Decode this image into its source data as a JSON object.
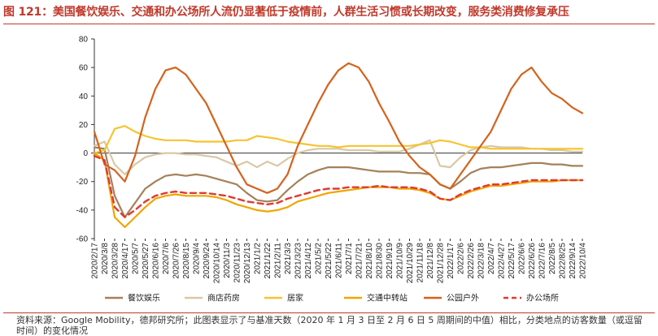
{
  "title": "图 121：美国餐饮娱乐、交通和办公场所人流仍显著低于疫情前，人群生活习惯或长期改变，服务类消费修复承压",
  "footnote": "资料来源：Google Mobility，德邦研究所；此图表显示了与基准天数（2020 年 1 月 3 日至 2 月 6 日 5 周期间的中值）相比，分类地点的访客数量（或逗留时间）的变化情况",
  "colors": {
    "restaurants": "#a5805a",
    "pharmacy": "#d9c8a5",
    "residential": "#f5c431",
    "transit": "#f0a500",
    "parks": "#d4621c",
    "workplaces": "#e03a2f",
    "title": "#c0392b"
  },
  "chart_data": {
    "type": "line",
    "ylim": [
      -60,
      80
    ],
    "yticks": [
      -60,
      -40,
      -20,
      0,
      20,
      40,
      60,
      80
    ],
    "x": [
      "2020/2/17",
      "2020/3/8",
      "2020/3/28",
      "2020/4/17",
      "2020/5/7",
      "2020/5/27",
      "2020/6/16",
      "2020/7/6",
      "2020/7/26",
      "2020/8/15",
      "2020/9/4",
      "2020/9/24",
      "2020/10/14",
      "2020/11/3",
      "2020/11/23",
      "2020/12/13",
      "2021/1/2",
      "2021/1/22",
      "2021/2/11",
      "2021/3/3",
      "2021/3/23",
      "2021/4/12",
      "2021/5/2",
      "2021/5/22",
      "2021/6/11",
      "2021/7/1",
      "2021/7/21",
      "2021/8/10",
      "2021/8/30",
      "2021/9/19",
      "2021/10/9",
      "2021/10/29",
      "2021/11/18",
      "2021/12/8",
      "2021/12/28",
      "2022/1/17",
      "2022/2/6",
      "2022/2/26",
      "2022/3/18",
      "2022/4/7",
      "2022/4/27",
      "2022/5/17",
      "2022/6/6",
      "2022/6/26",
      "2022/7/16",
      "2022/8/5",
      "2022/8/25",
      "2022/9/14",
      "2022/10/4"
    ],
    "xticks": [
      "2020/2/17",
      "2020/3/8",
      "2020/3/28",
      "2020/4/17",
      "2020/5/7",
      "2020/5/27",
      "2020/6/16",
      "2020/7/6",
      "2020/7/26",
      "2020/8/15",
      "2020/9/4",
      "2020/9/24",
      "2020/10/14",
      "2020/11/3",
      "2020/11/23",
      "2020/12/13",
      "2021/1/2",
      "2021/1/22",
      "2021/2/11",
      "2021/3/3",
      "2021/3/23",
      "2021/4/12",
      "2021/5/2",
      "2021/5/22",
      "2021/6/11",
      "2021/7/1",
      "2021/7/21",
      "2021/8/10",
      "2021/8/30",
      "2021/9/19",
      "2021/10/9",
      "2021/10/29",
      "2021/11/18",
      "2021/12/8",
      "2021/12/28",
      "2022/1/17",
      "2022/2/6",
      "2022/2/26",
      "2022/3/18",
      "2022/4/7",
      "2022/4/27",
      "2022/5/17",
      "2022/6/6",
      "2022/6/26",
      "2022/7/16",
      "2022/8/5",
      "2022/8/25",
      "2022/9/14",
      "2022/10/4"
    ],
    "grid": false,
    "legend_position": "bottom",
    "series": [
      {
        "name": "餐饮娱乐",
        "key": "restaurants",
        "dash": false,
        "values": [
          4,
          3,
          -30,
          -45,
          -35,
          -25,
          -20,
          -16,
          -15,
          -16,
          -15,
          -16,
          -18,
          -20,
          -22,
          -28,
          -33,
          -34,
          -33,
          -26,
          -20,
          -15,
          -12,
          -10,
          -10,
          -10,
          -11,
          -12,
          -13,
          -13,
          -13,
          -14,
          -14,
          -15,
          -22,
          -25,
          -20,
          -14,
          -11,
          -10,
          -10,
          -9,
          -8,
          -7,
          -7,
          -8,
          -8,
          -9,
          -9
        ]
      },
      {
        "name": "商店药房",
        "key": "pharmacy",
        "dash": false,
        "values": [
          5,
          8,
          -8,
          -15,
          -8,
          -3,
          -1,
          0,
          0,
          -1,
          -1,
          -2,
          -3,
          -6,
          -9,
          -6,
          -10,
          -6,
          -9,
          -4,
          0,
          2,
          3,
          3,
          3,
          2,
          2,
          2,
          1,
          1,
          1,
          3,
          6,
          9,
          -9,
          -10,
          -3,
          2,
          4,
          5,
          4,
          4,
          4,
          3,
          3,
          2,
          2,
          1,
          1
        ]
      },
      {
        "name": "居家",
        "key": "residential",
        "dash": false,
        "values": [
          0,
          2,
          17,
          19,
          15,
          12,
          10,
          9,
          9,
          9,
          8,
          8,
          8,
          8,
          9,
          9,
          12,
          11,
          10,
          8,
          7,
          6,
          5,
          5,
          4,
          5,
          5,
          5,
          5,
          5,
          5,
          5,
          6,
          7,
          9,
          8,
          6,
          4,
          4,
          3,
          3,
          3,
          3,
          3,
          3,
          3,
          3,
          3,
          3
        ]
      },
      {
        "name": "交通中转站",
        "key": "transit",
        "dash": false,
        "values": [
          0,
          -5,
          -45,
          -52,
          -45,
          -38,
          -32,
          -30,
          -29,
          -30,
          -30,
          -30,
          -31,
          -33,
          -36,
          -38,
          -40,
          -41,
          -40,
          -38,
          -34,
          -32,
          -30,
          -28,
          -27,
          -26,
          -25,
          -24,
          -24,
          -24,
          -25,
          -25,
          -26,
          -28,
          -32,
          -33,
          -30,
          -27,
          -25,
          -23,
          -23,
          -22,
          -21,
          -20,
          -20,
          -20,
          -19,
          -19,
          -19
        ]
      },
      {
        "name": "公园户外",
        "key": "parks",
        "dash": false,
        "values": [
          15,
          -8,
          -12,
          -20,
          -2,
          25,
          45,
          58,
          60,
          55,
          45,
          35,
          20,
          5,
          -10,
          -22,
          -25,
          -28,
          -25,
          -15,
          5,
          20,
          35,
          48,
          58,
          63,
          60,
          50,
          35,
          22,
          8,
          -2,
          -10,
          -15,
          -22,
          -25,
          -15,
          -5,
          5,
          15,
          30,
          45,
          55,
          60,
          50,
          42,
          38,
          32,
          28
        ]
      },
      {
        "name": "办公场所",
        "key": "workplaces",
        "dash": true,
        "values": [
          -2,
          -5,
          -38,
          -45,
          -40,
          -34,
          -30,
          -28,
          -27,
          -28,
          -28,
          -28,
          -29,
          -30,
          -32,
          -34,
          -35,
          -36,
          -35,
          -32,
          -30,
          -28,
          -26,
          -25,
          -25,
          -24,
          -24,
          -24,
          -23,
          -24,
          -24,
          -24,
          -25,
          -27,
          -32,
          -33,
          -29,
          -26,
          -24,
          -22,
          -22,
          -21,
          -20,
          -19,
          -19,
          -19,
          -19,
          -19,
          -19
        ]
      }
    ]
  }
}
